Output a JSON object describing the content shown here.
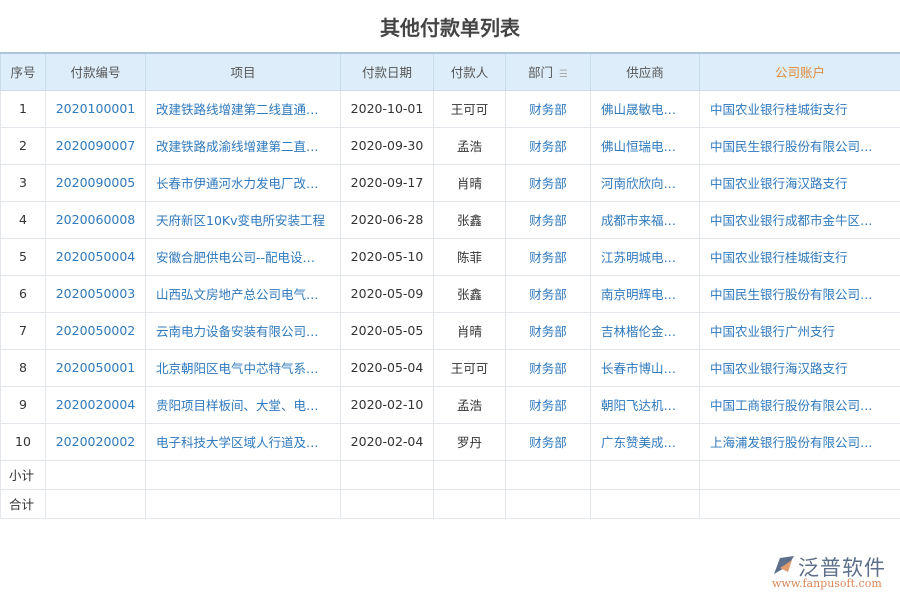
{
  "title": "其他付款单列表",
  "columns": [
    "序号",
    "付款编号",
    "项目",
    "付款日期",
    "付款人",
    "部门",
    "供应商",
    "公司账户"
  ],
  "rows": [
    [
      "1",
      "2020100001",
      "改建铁路线增建第二线直通…",
      "2020-10-01",
      "王可可",
      "财务部",
      "佛山晟敏电…",
      "中国农业银行桂城街支行"
    ],
    [
      "2",
      "2020090007",
      "改建铁路成渝线增建第二直…",
      "2020-09-30",
      "孟浩",
      "财务部",
      "佛山恒瑞电…",
      "中国民生银行股份有限公司…"
    ],
    [
      "3",
      "2020090005",
      "长春市伊通河水力发电厂改…",
      "2020-09-17",
      "肖晴",
      "财务部",
      "河南欣欣向…",
      "中国农业银行海汉路支行"
    ],
    [
      "4",
      "2020060008",
      "天府新区10Kv变电所安装工程",
      "2020-06-28",
      "张鑫",
      "财务部",
      "成都市来福…",
      "中国农业银行成都市金牛区…"
    ],
    [
      "5",
      "2020050004",
      "安徽合肥供电公司--配电设…",
      "2020-05-10",
      "陈菲",
      "财务部",
      "江苏明城电…",
      "中国农业银行桂城街支行"
    ],
    [
      "6",
      "2020050003",
      "山西弘文房地产总公司电气…",
      "2020-05-09",
      "张鑫",
      "财务部",
      "南京明辉电…",
      "中国民生银行股份有限公司…"
    ],
    [
      "7",
      "2020050002",
      "云南电力设备安装有限公司…",
      "2020-05-05",
      "肖晴",
      "财务部",
      "吉林楷伦金…",
      "中国农业银行广州支行"
    ],
    [
      "8",
      "2020050001",
      "北京朝阳区电气中芯特气系…",
      "2020-05-04",
      "王可可",
      "财务部",
      "长春市博山…",
      "中国农业银行海汉路支行"
    ],
    [
      "9",
      "2020020004",
      "贵阳项目样板间、大堂、电…",
      "2020-02-10",
      "孟浩",
      "财务部",
      "朝阳飞达机…",
      "中国工商银行股份有限公司…"
    ],
    [
      "10",
      "2020020002",
      "电子科技大学区域人行道及…",
      "2020-02-04",
      "罗丹",
      "财务部",
      "广东赞美成…",
      "上海浦发银行股份有限公司…"
    ]
  ],
  "subtotal_label": "小计",
  "total_label": "合计",
  "sort_icon": "sort-icon",
  "logo": {
    "name": "泛普软件",
    "url": "www.fanpusoft.com"
  },
  "colors": {
    "link": "#2f79bd",
    "header_bg": "#ddeefa",
    "account_header": "#e08a3c"
  }
}
